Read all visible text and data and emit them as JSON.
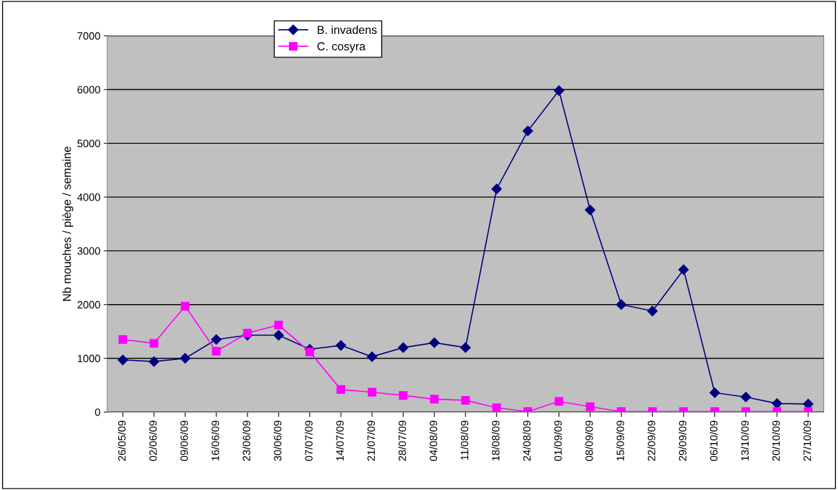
{
  "chart_data": {
    "type": "line",
    "ylabel": "Nb mouches / piège / semaine",
    "categories": [
      "26/05/09",
      "02/06/09",
      "09/06/09",
      "16/06/09",
      "23/06/09",
      "30/06/09",
      "07/07/09",
      "14/07/09",
      "21/07/09",
      "28/07/09",
      "04/08/09",
      "11/08/09",
      "18/08/09",
      "24/08/09",
      "01/09/09",
      "08/09/09",
      "15/09/09",
      "22/09/09",
      "29/09/09",
      "06/10/09",
      "13/10/09",
      "20/10/09",
      "27/10/09"
    ],
    "series": [
      {
        "name": "B. invadens",
        "color": "#000080",
        "marker": "diamond",
        "values": [
          970,
          940,
          1000,
          1350,
          1430,
          1430,
          1170,
          1240,
          1030,
          1200,
          1290,
          1200,
          4150,
          5230,
          5980,
          3760,
          2000,
          1880,
          2650,
          360,
          280,
          160,
          150
        ]
      },
      {
        "name": "C. cosyra",
        "color": "#ff00ff",
        "marker": "square",
        "values": [
          1350,
          1280,
          1970,
          1130,
          1470,
          1620,
          1120,
          420,
          370,
          310,
          240,
          220,
          80,
          10,
          200,
          100,
          10,
          10,
          10,
          10,
          10,
          10,
          10
        ]
      }
    ],
    "ylim": [
      0,
      7000
    ],
    "yticks": [
      0,
      1000,
      2000,
      3000,
      4000,
      5000,
      6000,
      7000
    ],
    "grid": "y",
    "legend": "top left"
  }
}
